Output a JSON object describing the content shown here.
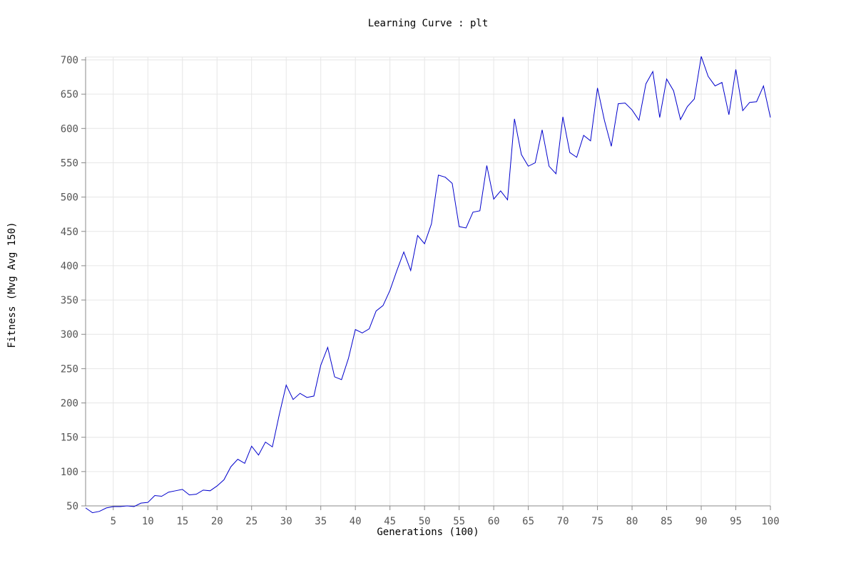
{
  "chart_data": {
    "type": "line",
    "title": "Learning Curve : plt",
    "xlabel": "Generations (100)",
    "ylabel": "Fitness (Mvg Avg 150)",
    "xlim": [
      1,
      100
    ],
    "ylim": [
      50,
      700
    ],
    "xticks": [
      5,
      10,
      15,
      20,
      25,
      30,
      35,
      40,
      45,
      50,
      55,
      60,
      65,
      70,
      75,
      80,
      85,
      90,
      95,
      100
    ],
    "yticks": [
      50,
      100,
      150,
      200,
      250,
      300,
      350,
      400,
      450,
      500,
      550,
      600,
      650,
      700
    ],
    "grid": true,
    "colors": {
      "line": "#0000cc",
      "grid": "#e6e6e6",
      "axis": "#888888",
      "tick_text": "#555555"
    },
    "series": [
      {
        "x": [
          1,
          2,
          3,
          4,
          5,
          6,
          7,
          8,
          9,
          10,
          11,
          12,
          13,
          14,
          15,
          16,
          17,
          18,
          19,
          20,
          21,
          22,
          23,
          24,
          25,
          26,
          27,
          28,
          29,
          30,
          31,
          32,
          33,
          34,
          35,
          36,
          37,
          38,
          39,
          40,
          41,
          42,
          43,
          44,
          45,
          46,
          47,
          48,
          49,
          50,
          51,
          52,
          53,
          54,
          55,
          56,
          57,
          58,
          59,
          60,
          61,
          62,
          63,
          64,
          65,
          66,
          67,
          68,
          69,
          70,
          71,
          72,
          73,
          74,
          75,
          76,
          77,
          78,
          79,
          80,
          81,
          82,
          83,
          84,
          85,
          86,
          87,
          88,
          89,
          90,
          91,
          92,
          93,
          94,
          95,
          96,
          97,
          98,
          99,
          100
        ],
        "values": [
          47,
          40,
          42,
          47,
          49,
          49,
          50,
          49,
          54,
          55,
          65,
          64,
          70,
          72,
          74,
          66,
          67,
          73,
          72,
          79,
          88,
          107,
          118,
          112,
          137,
          124,
          143,
          136,
          183,
          226,
          205,
          214,
          208,
          210,
          255,
          281,
          238,
          234,
          265,
          307,
          302,
          308,
          334,
          342,
          364,
          393,
          420,
          393,
          444,
          432,
          461,
          532,
          529,
          520,
          457,
          455,
          478,
          480,
          546,
          497,
          509,
          496,
          614,
          562,
          545,
          550,
          598,
          545,
          534,
          617,
          565,
          558,
          590,
          582,
          659,
          612,
          574,
          636,
          637,
          627,
          612,
          665,
          683,
          616,
          672,
          655,
          613,
          632,
          643,
          705,
          676,
          662,
          667,
          620,
          686,
          626,
          638,
          639,
          662,
          616
        ]
      }
    ]
  }
}
